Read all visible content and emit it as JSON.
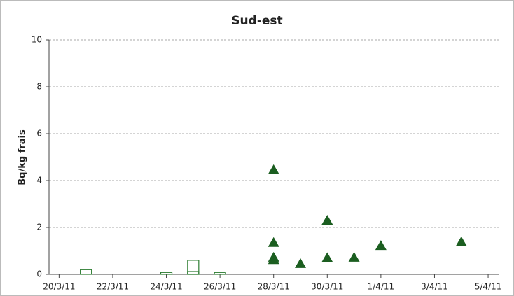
{
  "chart_data": {
    "type": "scatter",
    "title": "Sud-est",
    "y_label": "Bq/kg frais",
    "xlim": [
      "2011-03-19T15:00Z",
      "2011-04-05T10:00Z"
    ],
    "xticks": [
      {
        "value": "2011-03-20",
        "label": "20/3/11"
      },
      {
        "value": "2011-03-22",
        "label": "22/3/11"
      },
      {
        "value": "2011-03-24",
        "label": "24/3/11"
      },
      {
        "value": "2011-03-26",
        "label": "26/3/11"
      },
      {
        "value": "2011-03-28",
        "label": "28/3/11"
      },
      {
        "value": "2011-03-30",
        "label": "30/3/11"
      },
      {
        "value": "2011-04-01",
        "label": "1/4/11"
      },
      {
        "value": "2011-04-03",
        "label": "3/4/11"
      },
      {
        "value": "2011-04-05",
        "label": "5/4/11"
      }
    ],
    "ylim": [
      0,
      10
    ],
    "yticks": [
      0,
      2,
      4,
      6,
      8,
      10
    ],
    "grid": true,
    "series": [
      {
        "marker": "triangle",
        "color": "#1b5e20",
        "x": [
          "2011-03-28",
          "2011-03-28",
          "2011-03-28",
          "2011-03-28",
          "2011-03-29",
          "2011-03-30",
          "2011-03-30",
          "2011-03-31",
          "2011-04-01",
          "2011-04-04"
        ],
        "values": [
          4.45,
          1.35,
          0.72,
          0.62,
          0.45,
          2.3,
          0.7,
          0.72,
          1.22,
          1.38
        ]
      },
      {
        "marker": "box",
        "color": "#2e7d32",
        "x": [
          "2011-03-21",
          "2011-03-24",
          "2011-03-25",
          "2011-03-26"
        ],
        "values": [
          0.2,
          0.08,
          0.6,
          0.08
        ]
      },
      {
        "marker": "box",
        "color": "#2e7d32",
        "x": [
          "2011-03-25"
        ],
        "values": [
          0.12
        ]
      }
    ]
  }
}
